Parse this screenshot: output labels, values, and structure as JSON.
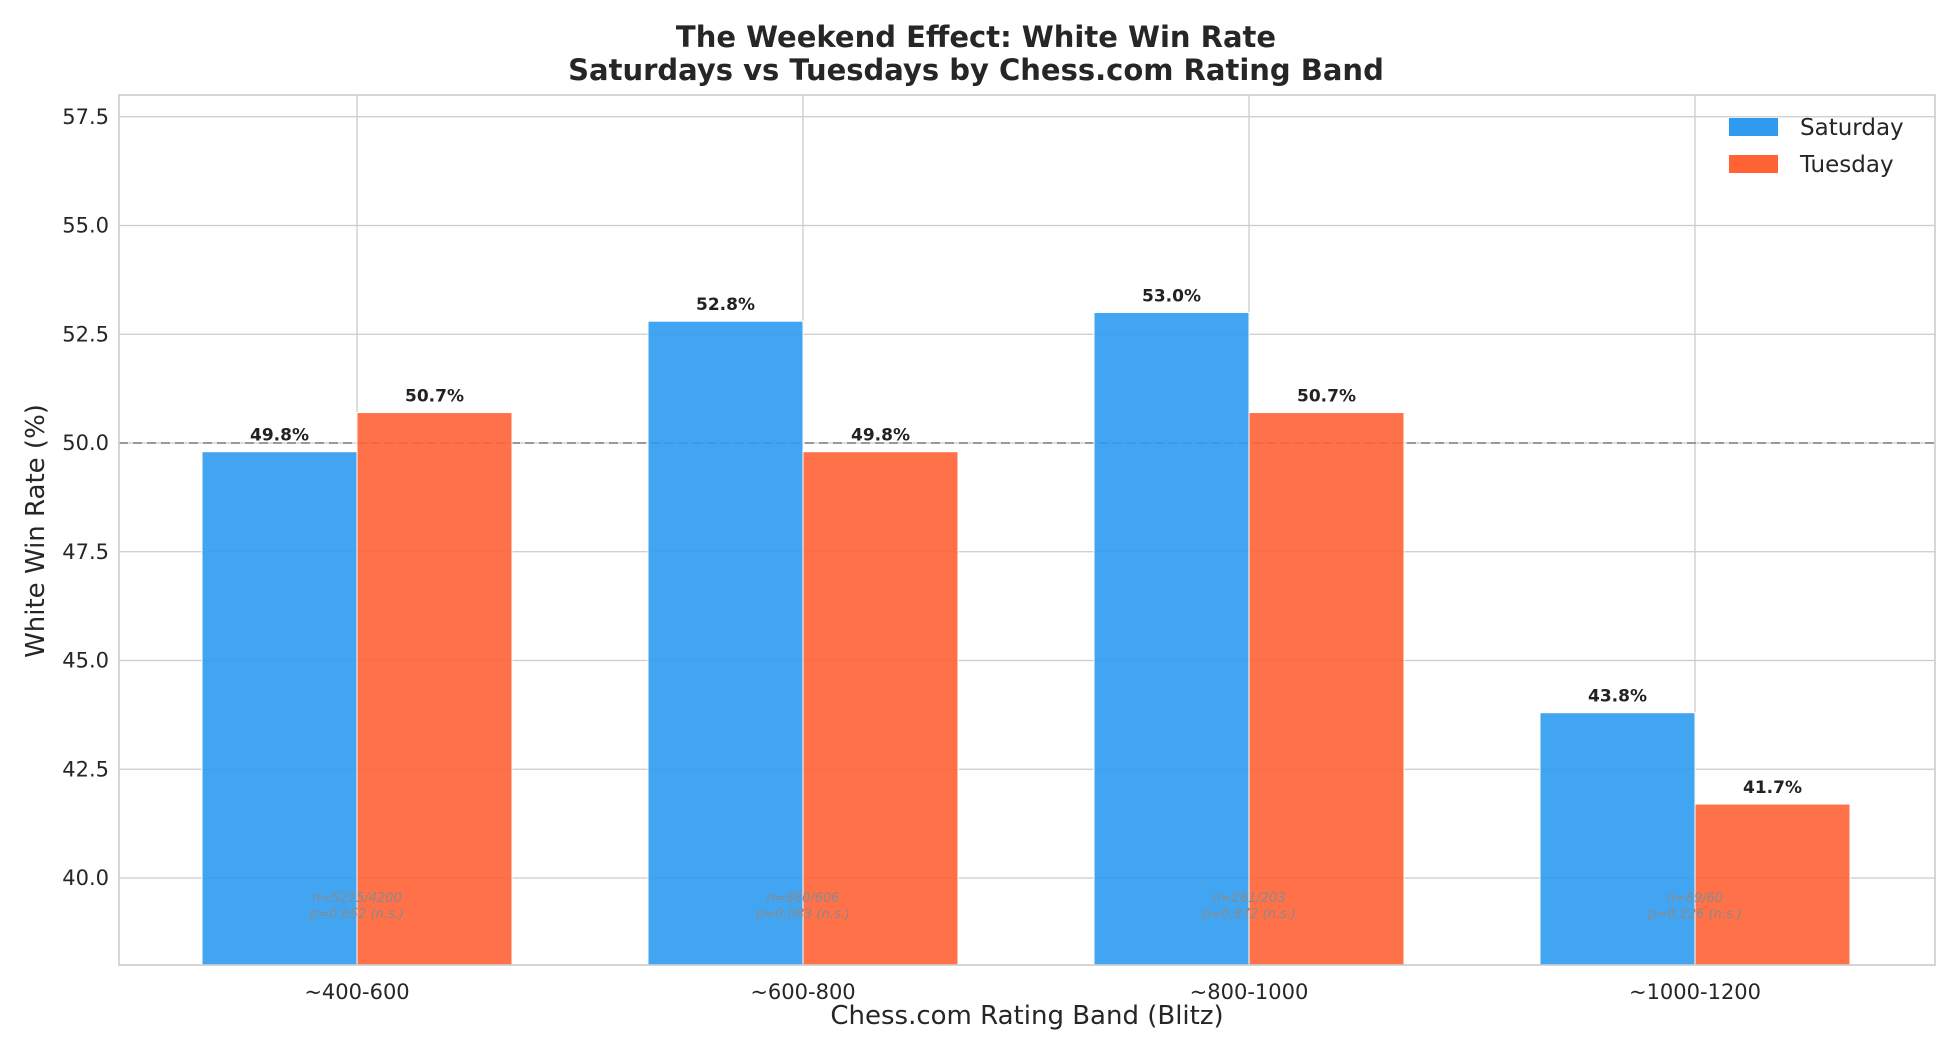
{
  "chart_data": {
    "type": "bar",
    "title_line1": "The Weekend Effect: White Win Rate",
    "title_line2": "Saturdays vs Tuesdays by Chess.com Rating Band",
    "xlabel": "Chess.com Rating Band (Blitz)",
    "ylabel": "White Win Rate (%)",
    "ylim": [
      38.0,
      58.0
    ],
    "yticks": [
      40.0,
      42.5,
      45.0,
      47.5,
      50.0,
      52.5,
      55.0,
      57.5
    ],
    "ytick_labels": [
      "40.0",
      "42.5",
      "45.0",
      "47.5",
      "50.0",
      "52.5",
      "55.0",
      "57.5"
    ],
    "grid": true,
    "reference_line": 50.0,
    "legend_position": "top-right",
    "categories": [
      "~400-600",
      "~600-800",
      "~800-1000",
      "~1000-1200"
    ],
    "series": [
      {
        "name": "Saturday",
        "color": "#2E9BF0",
        "values": [
          49.8,
          52.8,
          53.0,
          43.8
        ],
        "labels": [
          "49.8%",
          "52.8%",
          "53.0%",
          "43.8%"
        ]
      },
      {
        "name": "Tuesday",
        "color": "#FF6235",
        "values": [
          50.7,
          49.8,
          50.7,
          41.7
        ],
        "labels": [
          "50.7%",
          "49.8%",
          "50.7%",
          "41.7%"
        ]
      }
    ],
    "annotations": [
      {
        "line1": "n=5215/4200",
        "line2": "p=0.652 (n.s.)"
      },
      {
        "line1": "n=880/606",
        "line2": "p=0.083 (n.s.)"
      },
      {
        "line1": "n=261/203",
        "line2": "p=0.872 (n.s.)"
      },
      {
        "line1": "n=89/60",
        "line2": "p=0.226 (n.s.)"
      }
    ]
  }
}
